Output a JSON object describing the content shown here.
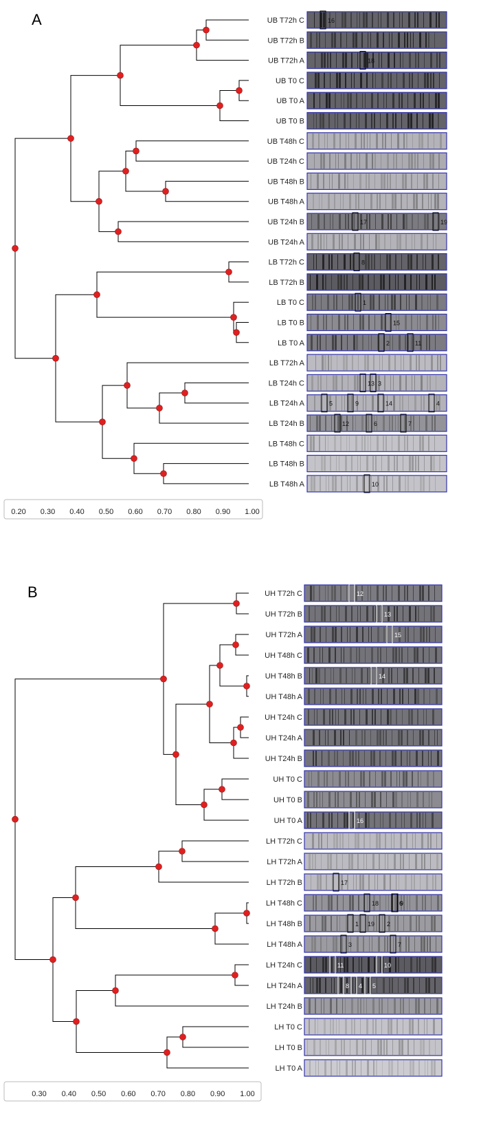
{
  "panels": [
    {
      "id": "A",
      "label": "A",
      "lanes": [
        "UB T72h C",
        "UB T72h B",
        "UB T72h A",
        "UB T0 C",
        "UB T0 A",
        "UB T0 B",
        "UB T48h C",
        "UB T24h C",
        "UB T48h B",
        "UB T48h A",
        "UB T24h B",
        "UB T24h A",
        "LB T72h C",
        "LB T72h B",
        "LB T0 C",
        "LB T0 B",
        "LB T0 A",
        "LB T72h A",
        "LB T24h C",
        "LB T24h A",
        "LB T24h B",
        "LB T48h C",
        "LB T48h B",
        "LB T48h A"
      ],
      "lane_intensity": [
        0.85,
        0.85,
        0.85,
        0.85,
        0.85,
        0.85,
        0.35,
        0.4,
        0.35,
        0.35,
        0.7,
        0.35,
        0.85,
        0.9,
        0.7,
        0.6,
        0.7,
        0.3,
        0.35,
        0.35,
        0.55,
        0.25,
        0.25,
        0.25
      ],
      "axis_ticks": [
        "0.20",
        "0.30",
        "0.40",
        "0.50",
        "0.60",
        "0.70",
        "0.80",
        "0.90",
        "1.00"
      ],
      "band_labels": [
        {
          "text": "16",
          "lane": 0
        },
        {
          "text": "18",
          "lane": 2
        },
        {
          "text": "17",
          "lane": 10
        },
        {
          "text": "19",
          "lane": 10
        },
        {
          "text": "8",
          "lane": 12
        },
        {
          "text": "1",
          "lane": 14
        },
        {
          "text": "15",
          "lane": 15
        },
        {
          "text": "2",
          "lane": 16
        },
        {
          "text": "11",
          "lane": 16
        },
        {
          "text": "13",
          "lane": 18
        },
        {
          "text": "3",
          "lane": 18
        },
        {
          "text": "5",
          "lane": 19
        },
        {
          "text": "9",
          "lane": 19
        },
        {
          "text": "14",
          "lane": 19
        },
        {
          "text": "4",
          "lane": 19
        },
        {
          "text": "12",
          "lane": 20
        },
        {
          "text": "6",
          "lane": 20
        },
        {
          "text": "7",
          "lane": 20
        },
        {
          "text": "10",
          "lane": 23
        }
      ]
    },
    {
      "id": "B",
      "label": "B",
      "lanes": [
        "UH T72h C",
        "UH T72h B",
        "UH T72h A",
        "UH T48h C",
        "UH T48h B",
        "UH T48h A",
        "UH T24h C",
        "UH T24h A",
        "UH T24h B",
        "UH T0 C",
        "UH T0 B",
        "UH T0 A",
        "LH T72h C",
        "LH T72h A",
        "LH T72h B",
        "LH T48h C",
        "LH T48h B",
        "LH T48h A",
        "LH T24h C",
        "LH T24h A",
        "LH T24h B",
        "LH T0 C",
        "LH T0 B",
        "LH T0 A"
      ],
      "lane_intensity": [
        0.7,
        0.75,
        0.75,
        0.75,
        0.75,
        0.75,
        0.75,
        0.75,
        0.75,
        0.6,
        0.6,
        0.75,
        0.3,
        0.3,
        0.3,
        0.55,
        0.5,
        0.5,
        0.9,
        0.85,
        0.5,
        0.25,
        0.25,
        0.2
      ],
      "axis_ticks": [
        "0.30",
        "0.40",
        "0.50",
        "0.60",
        "0.70",
        "0.80",
        "0.90",
        "1.00"
      ],
      "band_labels": [
        {
          "text": "12",
          "lane": 0
        },
        {
          "text": "13",
          "lane": 1
        },
        {
          "text": "15",
          "lane": 2
        },
        {
          "text": "14",
          "lane": 4
        },
        {
          "text": "16",
          "lane": 11
        },
        {
          "text": "17",
          "lane": 14
        },
        {
          "text": "6",
          "lane": 15
        },
        {
          "text": "18",
          "lane": 15
        },
        {
          "text": "9",
          "lane": 15
        },
        {
          "text": "1",
          "lane": 16
        },
        {
          "text": "19",
          "lane": 16
        },
        {
          "text": "2",
          "lane": 16
        },
        {
          "text": "3",
          "lane": 17
        },
        {
          "text": "7",
          "lane": 17
        },
        {
          "text": "11",
          "lane": 18
        },
        {
          "text": "10",
          "lane": 18
        },
        {
          "text": "8",
          "lane": 19
        },
        {
          "text": "4",
          "lane": 19
        },
        {
          "text": "5",
          "lane": 19
        }
      ]
    }
  ]
}
